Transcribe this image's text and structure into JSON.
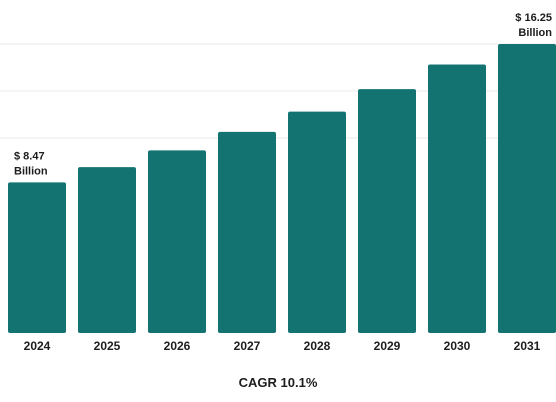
{
  "colors": {
    "bar": "#137371",
    "grid": "#e9e9e9",
    "text": "#1d1d1d"
  },
  "chart_data": {
    "type": "bar",
    "title": "",
    "xlabel": "CAGR 10.1%",
    "ylabel": "",
    "categories": [
      "2024",
      "2025",
      "2026",
      "2027",
      "2028",
      "2029",
      "2030",
      "2031"
    ],
    "values": [
      8.47,
      9.33,
      10.27,
      11.31,
      12.45,
      13.71,
      15.1,
      16.25
    ],
    "unit": "Billion",
    "ylim": [
      0,
      16.25
    ],
    "grid": true,
    "legend": "none",
    "data_labels": [
      {
        "category": "2024",
        "line1": "$ 8.47",
        "line2": "Billion"
      },
      {
        "category": "2031",
        "line1": "$ 16.25",
        "line2": "Billion"
      }
    ]
  },
  "footer": {
    "cagr_label": "CAGR 10.1%"
  }
}
